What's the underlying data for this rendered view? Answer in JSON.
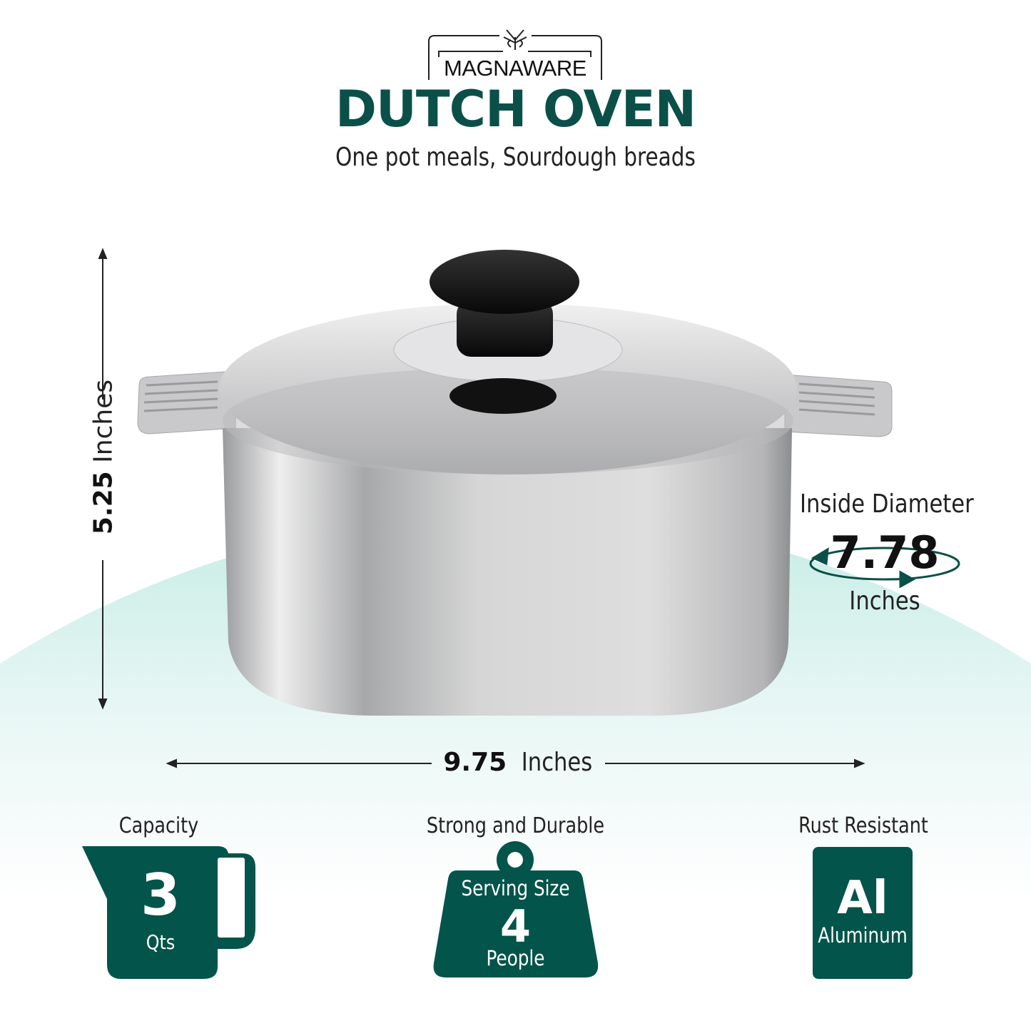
{
  "brand": {
    "name": "MAGNAWARE"
  },
  "header": {
    "title": "DUTCH OVEN",
    "subtitle": "One pot meals, Sourdough breads"
  },
  "dimensions": {
    "height": {
      "value": "5.25",
      "unit": "Inches"
    },
    "width": {
      "value": "9.75",
      "unit": "Inches"
    },
    "inside_diameter": {
      "label": "Inside Diameter",
      "value": "7.78",
      "unit": "Inches"
    }
  },
  "features": [
    {
      "label": "Capacity",
      "value": "3",
      "unit": "Qts",
      "icon": "measuring-cup-icon"
    },
    {
      "label": "Strong and Durable",
      "top": "Serving Size",
      "value": "4",
      "unit": "People",
      "icon": "weight-icon"
    },
    {
      "label": "Rust Resistant",
      "value": "Al",
      "unit": "Aluminum",
      "icon": "element-tile-icon"
    }
  ],
  "colors": {
    "brand_green": "#03544a",
    "mint": "#cdeee8"
  }
}
